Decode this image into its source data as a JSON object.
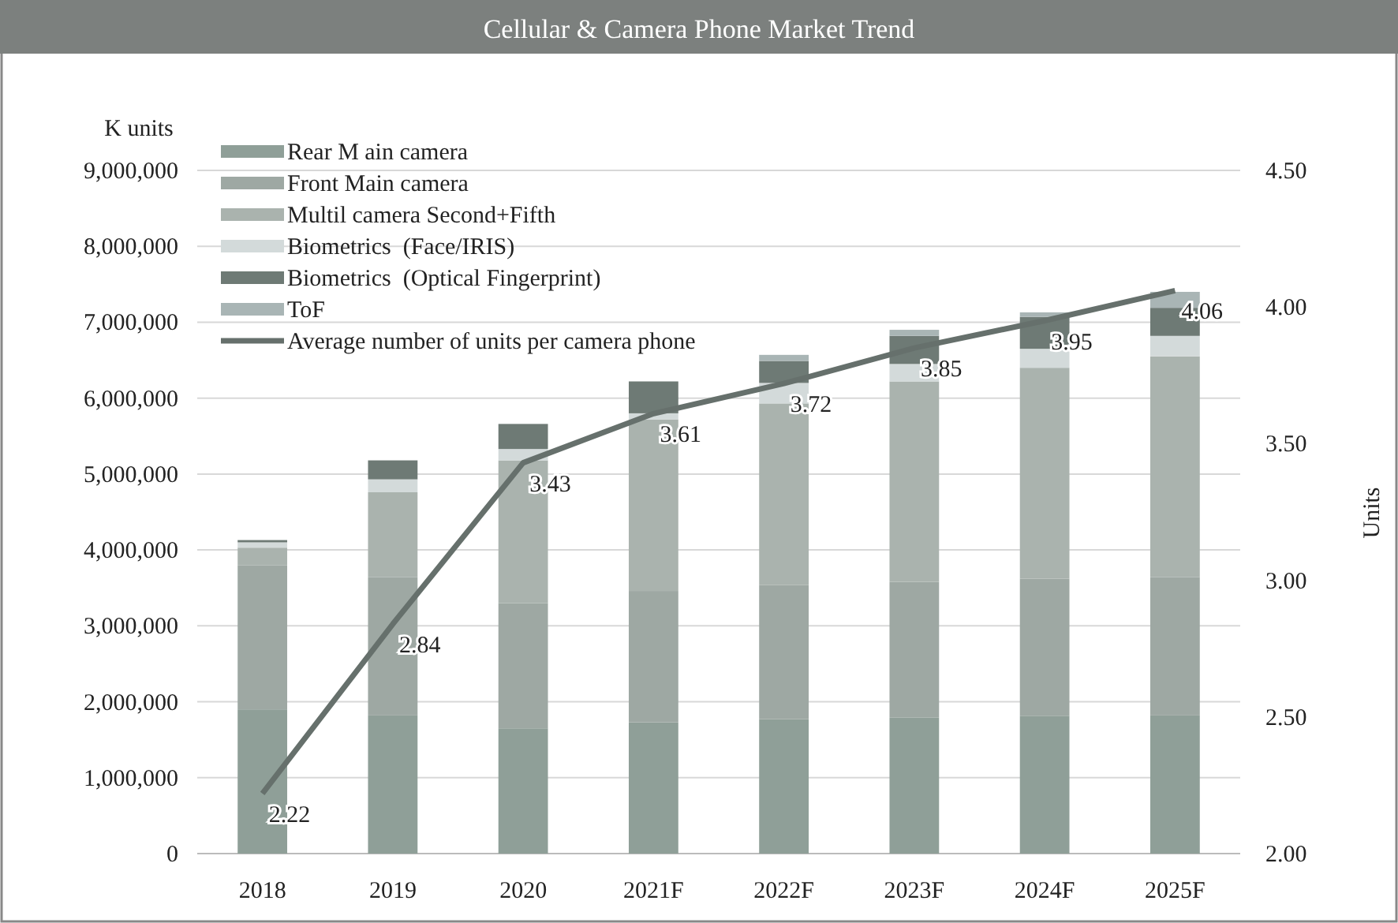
{
  "chart_data": {
    "type": "bar",
    "title": "Cellular & Camera Phone Market Trend",
    "ylabel": "K units",
    "y2label": "Units",
    "categories": [
      "2018",
      "2019",
      "2020",
      "2021F",
      "2022F",
      "2023F",
      "2024F",
      "2025F"
    ],
    "stacked": true,
    "grid": "y",
    "legend": "top left",
    "ylim": [
      0,
      9000000
    ],
    "yticks": [
      {
        "value": 0,
        "label": "0"
      },
      {
        "value": 1000000,
        "label": "1,000,000"
      },
      {
        "value": 2000000,
        "label": "2,000,000"
      },
      {
        "value": 3000000,
        "label": "3,000,000"
      },
      {
        "value": 4000000,
        "label": "4,000,000"
      },
      {
        "value": 5000000,
        "label": "5,000,000"
      },
      {
        "value": 6000000,
        "label": "6,000,000"
      },
      {
        "value": 7000000,
        "label": "7,000,000"
      },
      {
        "value": 8000000,
        "label": "8,000,000"
      },
      {
        "value": 9000000,
        "label": "9,000,000"
      }
    ],
    "y2lim": [
      2,
      4.5
    ],
    "y2ticks": [
      {
        "value": 2,
        "label": "2.00"
      },
      {
        "value": 2.5,
        "label": "2.50"
      },
      {
        "value": 3,
        "label": "3.00"
      },
      {
        "value": 3.5,
        "label": "3.50"
      },
      {
        "value": 4,
        "label": "4.00"
      },
      {
        "value": 4.5,
        "label": "4.50"
      }
    ],
    "series": [
      {
        "name": "Rear M ain camera",
        "color": "#8f9f98",
        "values": [
          1900000,
          1820000,
          1650000,
          1730000,
          1770000,
          1790000,
          1810000,
          1820000
        ]
      },
      {
        "name": "Front Main camera",
        "color": "#9ea8a3",
        "values": [
          1900000,
          1820000,
          1650000,
          1730000,
          1770000,
          1790000,
          1810000,
          1820000
        ]
      },
      {
        "name": "Multil camera Second+Fifth",
        "color": "#aab3ae",
        "values": [
          230000,
          1120000,
          1880000,
          2260000,
          2390000,
          2640000,
          2780000,
          2910000
        ]
      },
      {
        "name": "Biometrics  (Face/IRIS)",
        "color": "#d3dada",
        "values": [
          70000,
          170000,
          150000,
          80000,
          270000,
          230000,
          250000,
          270000
        ]
      },
      {
        "name": "Biometrics  (Optical Fingerprint)",
        "color": "#6e7a75",
        "values": [
          30000,
          250000,
          330000,
          420000,
          290000,
          370000,
          420000,
          370000
        ]
      },
      {
        "name": "ToF",
        "color": "#a9b5b5",
        "values": [
          0,
          0,
          0,
          0,
          80000,
          80000,
          60000,
          210000
        ]
      },
      {
        "name": "Average number of units per camera phone",
        "type": "line",
        "axis": "y2",
        "color": "#66706c",
        "marker": "none",
        "values": [
          2.22,
          2.84,
          3.43,
          3.61,
          3.72,
          3.85,
          3.95,
          4.06
        ],
        "value_labels": [
          "2.22",
          "2.84",
          "3.43",
          "3.61",
          "3.72",
          "3.85",
          "3.95",
          "4.06"
        ]
      }
    ]
  }
}
